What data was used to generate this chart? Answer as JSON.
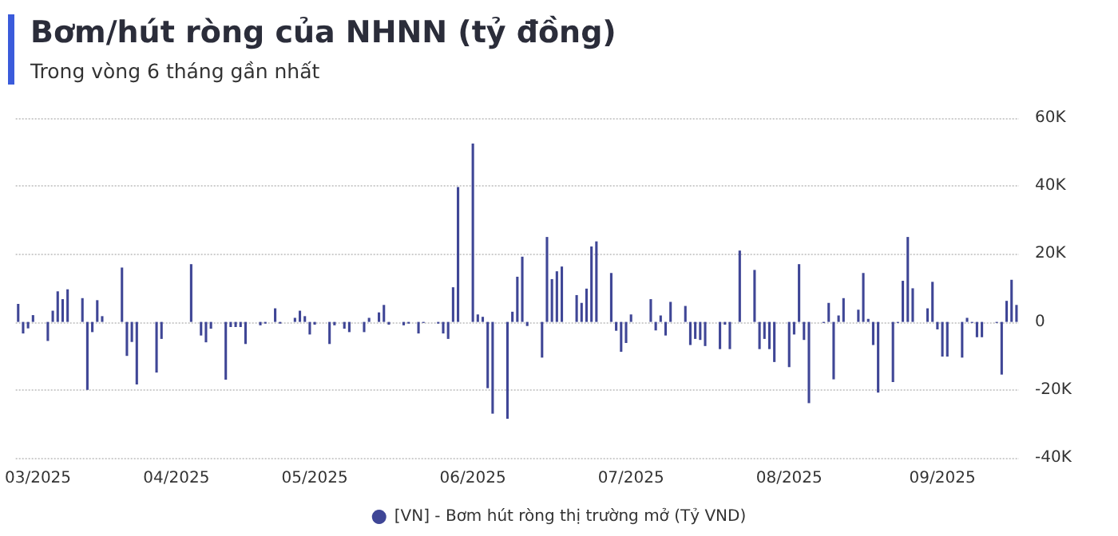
{
  "chart_data": {
    "type": "bar",
    "title": "Bơm/hút ròng của NHNN (tỷ đồng)",
    "subtitle": "Trong vòng 6 tháng gần nhất",
    "categories": [
      null,
      null,
      null,
      null,
      "03/2025",
      null,
      null,
      null,
      null,
      null,
      null,
      null,
      null,
      null,
      null,
      null,
      null,
      null,
      null,
      null,
      null,
      null,
      null,
      null,
      null,
      null,
      null,
      null,
      null,
      null,
      null,
      null,
      "04/2025",
      null,
      null,
      null,
      null,
      null,
      null,
      null,
      null,
      null,
      null,
      null,
      null,
      null,
      null,
      null,
      null,
      null,
      null,
      null,
      null,
      null,
      null,
      null,
      null,
      null,
      null,
      null,
      "05/2025",
      null,
      null,
      null,
      null,
      null,
      null,
      null,
      null,
      null,
      null,
      null,
      null,
      null,
      null,
      null,
      null,
      null,
      null,
      null,
      null,
      null,
      null,
      null,
      null,
      null,
      null,
      null,
      null,
      null,
      null,
      null,
      "06/2025",
      null,
      null,
      null,
      null,
      null,
      null,
      null,
      null,
      null,
      null,
      null,
      null,
      null,
      null,
      null,
      null,
      null,
      null,
      null,
      null,
      null,
      null,
      null,
      null,
      null,
      null,
      null,
      null,
      null,
      null,
      null,
      "07/2025",
      null,
      null,
      null,
      null,
      null,
      null,
      null,
      null,
      null,
      null,
      null,
      null,
      null,
      null,
      null,
      null,
      null,
      null,
      null,
      null,
      null,
      null,
      null,
      null,
      null,
      null,
      null,
      null,
      null,
      null,
      null,
      "08/2025",
      null,
      null,
      null,
      null,
      null,
      null,
      null,
      null,
      null,
      null,
      null,
      null,
      null,
      null,
      null,
      null,
      null,
      null,
      null,
      null,
      null,
      null,
      null,
      null,
      null,
      null,
      null,
      null,
      null,
      null,
      "09/2025",
      null,
      null,
      null,
      null,
      null,
      null,
      null,
      null,
      null,
      null,
      null,
      null,
      null,
      null,
      null
    ],
    "series": [
      {
        "name": "[VN] - Bơm hút ròng thị trường mở (Tỷ VND)",
        "color": "#3f4696",
        "values": [
          5300,
          -3400,
          -1900,
          2000,
          null,
          null,
          -5600,
          3300,
          9000,
          6700,
          9600,
          null,
          null,
          7000,
          -20000,
          -3000,
          6400,
          1700,
          null,
          null,
          null,
          16000,
          -10000,
          -5900,
          -18400,
          null,
          null,
          null,
          -14900,
          -5000,
          null,
          null,
          null,
          null,
          null,
          17000,
          null,
          -4000,
          -6000,
          -2000,
          null,
          null,
          -17000,
          -1500,
          -1500,
          -1500,
          -6500,
          null,
          null,
          -1000,
          -500,
          null,
          4000,
          -500,
          null,
          null,
          1200,
          3300,
          1700,
          -3700,
          -800,
          null,
          null,
          -6500,
          -1000,
          null,
          -2000,
          -3000,
          null,
          null,
          -3000,
          1200,
          null,
          2800,
          5000,
          -800,
          null,
          null,
          -1000,
          -500,
          null,
          -3400,
          -300,
          null,
          null,
          -500,
          -3400,
          -5000,
          10200,
          39700,
          null,
          null,
          52500,
          2200,
          1500,
          -19500,
          -27000,
          null,
          null,
          -28500,
          3000,
          13300,
          19200,
          -1200,
          null,
          null,
          -10500,
          25000,
          12600,
          14900,
          16300,
          null,
          null,
          7900,
          5600,
          9800,
          22200,
          23700,
          null,
          null,
          14400,
          -2600,
          -8800,
          -6200,
          2200,
          null,
          null,
          null,
          6700,
          -2500,
          1900,
          -4000,
          5900,
          null,
          null,
          4700,
          -6800,
          -5000,
          -5300,
          -7100,
          null,
          null,
          -8000,
          -800,
          -8000,
          null,
          21000,
          null,
          null,
          15300,
          -8000,
          -5000,
          -8000,
          -11800,
          null,
          null,
          -13300,
          -3700,
          17000,
          -5300,
          -23900,
          null,
          null,
          -300,
          5600,
          -16900,
          1900,
          7000,
          null,
          null,
          3600,
          14400,
          900,
          -6800,
          -20800,
          null,
          null,
          -17700,
          -300,
          12100,
          25000,
          9900,
          null,
          null,
          4000,
          11800,
          -2200,
          -10200,
          -10200,
          null,
          null,
          -10500,
          1200,
          -300,
          -4500,
          -4500,
          null,
          null,
          -300,
          -15500,
          6200,
          12400,
          5000
        ]
      }
    ],
    "ylim": [
      -40000,
      60000
    ],
    "yticks": [
      {
        "value": -40000,
        "label": "-40K"
      },
      {
        "value": -20000,
        "label": "-20K"
      },
      0,
      {
        "value": 20000,
        "label": "20K"
      },
      {
        "value": 40000,
        "label": "40K"
      },
      {
        "value": 60000,
        "label": "60K"
      }
    ],
    "grid": "y",
    "legend": "bottom"
  }
}
